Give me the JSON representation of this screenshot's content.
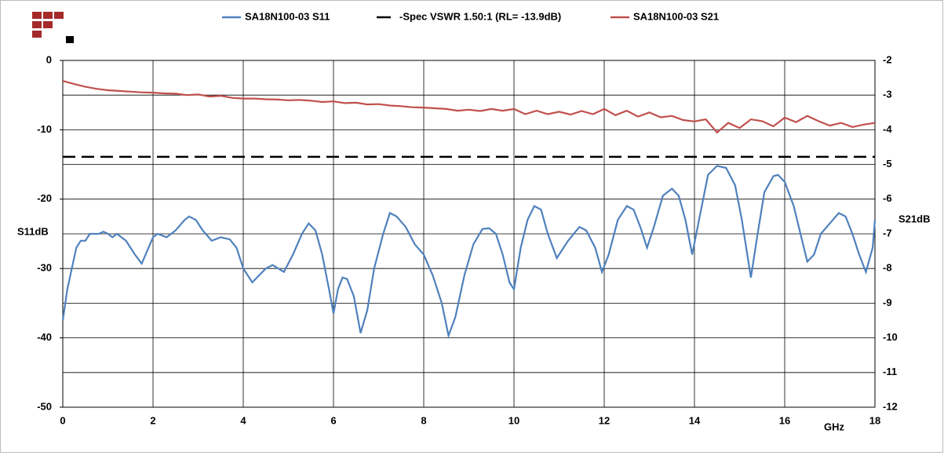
{
  "chart_data": {
    "type": "line",
    "xlim": [
      0,
      18
    ],
    "xticks": [
      0,
      2,
      4,
      6,
      8,
      10,
      12,
      14,
      16,
      18
    ],
    "xlabel": "GHz",
    "ylim": [
      -50,
      0
    ],
    "yticks": [
      0,
      -10,
      -20,
      -30,
      -40,
      -50
    ],
    "ylabel": "S11dB",
    "y2lim": [
      -12,
      -2
    ],
    "y2ticks": [
      -2,
      -3,
      -4,
      -5,
      -6,
      -7,
      -8,
      -9,
      -10,
      -11,
      -12
    ],
    "y2label": "S21dB",
    "grid": true,
    "legend": "top",
    "series": [
      {
        "name": "SA18N100-03 S11",
        "color": "#4f81bd",
        "axis": "y",
        "x": [
          0,
          0.1,
          0.2,
          0.3,
          0.4,
          0.5,
          0.6,
          0.8,
          0.9,
          1.0,
          1.1,
          1.2,
          1.4,
          1.6,
          1.75,
          1.9,
          2.0,
          2.1,
          2.3,
          2.5,
          2.7,
          2.8,
          2.95,
          3.1,
          3.3,
          3.5,
          3.7,
          3.85,
          4.0,
          4.2,
          4.35,
          4.5,
          4.65,
          4.9,
          5.1,
          5.3,
          5.45,
          5.6,
          5.75,
          5.9,
          6.0,
          6.1,
          6.2,
          6.3,
          6.45,
          6.6,
          6.75,
          6.9,
          7.1,
          7.25,
          7.4,
          7.6,
          7.8,
          8.0,
          8.2,
          8.4,
          8.55,
          8.7,
          8.9,
          9.1,
          9.3,
          9.45,
          9.6,
          9.75,
          9.9,
          10.0,
          10.15,
          10.3,
          10.45,
          10.6,
          10.75,
          10.95,
          11.2,
          11.45,
          11.6,
          11.8,
          11.95,
          12.1,
          12.3,
          12.5,
          12.65,
          12.8,
          12.95,
          13.1,
          13.3,
          13.5,
          13.65,
          13.8,
          13.95,
          14.1,
          14.3,
          14.5,
          14.7,
          14.9,
          15.05,
          15.25,
          15.4,
          15.55,
          15.75,
          15.85,
          16.0,
          16.2,
          16.35,
          16.5,
          16.65,
          16.8,
          17.0,
          17.2,
          17.35,
          17.5,
          17.65,
          17.8,
          17.95,
          18.0
        ],
        "values": [
          -37.5,
          -33,
          -30,
          -27,
          -26,
          -26,
          -25,
          -25,
          -24.7,
          -25,
          -25.5,
          -25,
          -26,
          -28,
          -29.3,
          -27,
          -25.5,
          -25,
          -25.5,
          -24.5,
          -23,
          -22.5,
          -23,
          -24.5,
          -26,
          -25.5,
          -25.8,
          -27,
          -30,
          -32,
          -31,
          -30,
          -29.5,
          -30.5,
          -28,
          -25,
          -23.5,
          -24.5,
          -28,
          -33,
          -36.5,
          -33,
          -31.3,
          -31.5,
          -34,
          -39.3,
          -36,
          -30,
          -25,
          -22,
          -22.5,
          -24,
          -26.5,
          -28,
          -31,
          -35,
          -39.7,
          -37,
          -31,
          -26.5,
          -24.3,
          -24.2,
          -25,
          -28,
          -32,
          -33,
          -27,
          -23,
          -21,
          -21.5,
          -25,
          -28.5,
          -26,
          -24,
          -24.5,
          -27,
          -30.5,
          -28,
          -23,
          -21,
          -21.5,
          -24,
          -27,
          -24,
          -19.5,
          -18.5,
          -19.5,
          -23,
          -28,
          -23,
          -16.5,
          -15.2,
          -15.5,
          -18,
          -23,
          -31.3,
          -25,
          -19,
          -16.7,
          -16.5,
          -17.5,
          -21,
          -25,
          -29,
          -28,
          -25,
          -23.5,
          -22,
          -22.5,
          -25,
          -28,
          -30.5,
          -27,
          -23
        ]
      },
      {
        "name": "-Spec VSWR 1.50:1 (RL= -13.9dB)",
        "color": "#000000",
        "axis": "y",
        "dashed": true,
        "x": [
          0,
          18
        ],
        "values": [
          -13.9,
          -13.9
        ]
      },
      {
        "name": "SA18N100-03 S21",
        "color": "#c0504d",
        "axis": "y2",
        "x": [
          0,
          0.25,
          0.5,
          0.75,
          1,
          1.25,
          1.5,
          1.75,
          2,
          2.25,
          2.5,
          2.75,
          3,
          3.25,
          3.5,
          3.75,
          4,
          4.25,
          4.5,
          4.75,
          5,
          5.25,
          5.5,
          5.75,
          6,
          6.25,
          6.5,
          6.75,
          7,
          7.25,
          7.5,
          7.75,
          8,
          8.25,
          8.5,
          8.75,
          9,
          9.25,
          9.5,
          9.75,
          10,
          10.25,
          10.5,
          10.75,
          11,
          11.25,
          11.5,
          11.75,
          12,
          12.25,
          12.5,
          12.75,
          13,
          13.25,
          13.5,
          13.75,
          14,
          14.25,
          14.5,
          14.75,
          15,
          15.25,
          15.5,
          15.75,
          16,
          16.25,
          16.5,
          16.75,
          17,
          17.25,
          17.5,
          17.75,
          18
        ],
        "values": [
          -2.59,
          -2.68,
          -2.76,
          -2.82,
          -2.86,
          -2.88,
          -2.9,
          -2.92,
          -2.93,
          -2.95,
          -2.96,
          -3.0,
          -2.98,
          -3.04,
          -3.02,
          -3.08,
          -3.1,
          -3.1,
          -3.12,
          -3.13,
          -3.15,
          -3.14,
          -3.16,
          -3.2,
          -3.18,
          -3.23,
          -3.22,
          -3.27,
          -3.26,
          -3.3,
          -3.32,
          -3.35,
          -3.36,
          -3.38,
          -3.4,
          -3.45,
          -3.42,
          -3.46,
          -3.4,
          -3.45,
          -3.4,
          -3.55,
          -3.45,
          -3.55,
          -3.48,
          -3.56,
          -3.46,
          -3.55,
          -3.4,
          -3.58,
          -3.45,
          -3.62,
          -3.5,
          -3.64,
          -3.6,
          -3.72,
          -3.76,
          -3.7,
          -4.08,
          -3.8,
          -3.95,
          -3.7,
          -3.75,
          -3.9,
          -3.65,
          -3.78,
          -3.6,
          -3.75,
          -3.88,
          -3.8,
          -3.92,
          -3.85,
          -3.8
        ]
      }
    ]
  }
}
